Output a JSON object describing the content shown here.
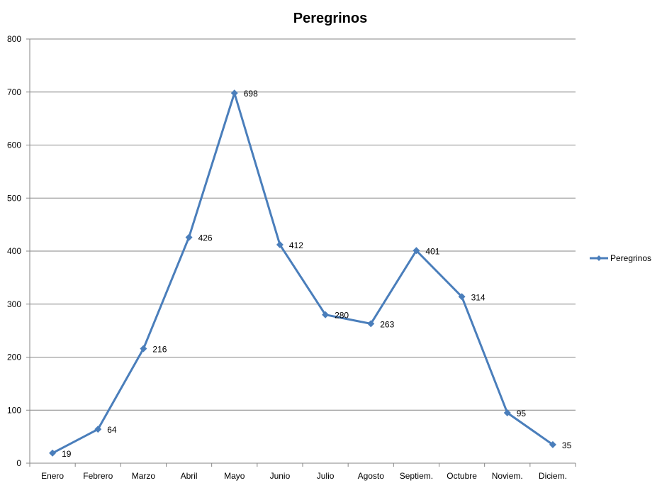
{
  "chart_data": {
    "type": "line",
    "title": "Peregrinos",
    "xlabel": "",
    "ylabel": "",
    "categories": [
      "Enero",
      "Febrero",
      "Marzo",
      "Abril",
      "Mayo",
      "Junio",
      "Julio",
      "Agosto",
      "Septiem.",
      "Octubre",
      "Noviem.",
      "Diciem."
    ],
    "series": [
      {
        "name": "Peregrinos",
        "values": [
          19,
          64,
          216,
          426,
          698,
          412,
          280,
          263,
          401,
          314,
          95,
          35
        ],
        "color": "#4a7ebb",
        "marker": "diamond"
      }
    ],
    "ylim": [
      0,
      800
    ],
    "yticks": [
      0,
      100,
      200,
      300,
      400,
      500,
      600,
      700,
      800
    ],
    "grid": "horizontal",
    "legend": "right",
    "data_labels": true
  }
}
